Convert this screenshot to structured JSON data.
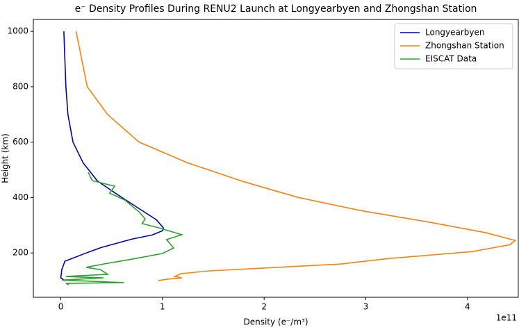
{
  "chart_data": {
    "type": "line",
    "title": "e⁻ Density Profiles During RENU2 Launch at Longyearbyen and Zhongshan Station",
    "x_label": "Density (e⁻/m³)",
    "y_label": "Height (km)",
    "x_offset_label": "1e11",
    "xlim": [
      -0.27,
      4.5
    ],
    "ylim": [
      40,
      1043
    ],
    "xticks": [
      0,
      1,
      2,
      3,
      4
    ],
    "yticks": [
      200,
      400,
      600,
      800,
      1000
    ],
    "grid": false,
    "legend": "upper right",
    "series": [
      {
        "name": "Longyearbyen",
        "color": "#0000b0",
        "x": [
          0.03,
          0.04,
          0.05,
          0.07,
          0.12,
          0.22,
          0.36,
          0.56,
          0.77,
          0.94,
          1.01,
          1.0,
          0.9,
          0.7,
          0.4,
          0.25,
          0.04,
          0.01,
          0.0,
          0.04
        ],
        "values": [
          1000,
          900,
          800,
          700,
          600,
          525,
          460,
          410,
          360,
          320,
          290,
          280,
          265,
          250,
          220,
          200,
          170,
          140,
          110,
          100
        ]
      },
      {
        "name": "Zhongshan Station",
        "color": "#ff7f0e",
        "x": [
          0.15,
          0.26,
          0.46,
          0.77,
          1.25,
          1.8,
          2.34,
          2.95,
          3.64,
          4.18,
          4.47,
          4.42,
          4.05,
          3.23,
          2.75,
          2.13,
          1.45,
          1.18,
          1.12,
          1.19,
          1.04,
          0.96
        ],
        "values": [
          1000,
          800,
          700,
          600,
          525,
          457,
          400,
          353,
          310,
          273,
          245,
          230,
          205,
          180,
          160,
          148,
          135,
          125,
          115,
          110,
          105,
          100
        ]
      },
      {
        "name": "EISCAT Data",
        "color": "#2ca02c",
        "x": [
          0.27,
          0.31,
          0.53,
          0.48,
          0.63,
          0.77,
          0.83,
          0.8,
          0.96,
          1.19,
          1.04,
          1.11,
          1.0,
          0.63,
          0.42,
          0.25,
          0.39,
          0.46,
          0.05,
          0.42,
          0.01,
          0.62,
          0.05,
          0.08
        ],
        "values": [
          491,
          461,
          441,
          416,
          391,
          348,
          323,
          306,
          291,
          266,
          248,
          218,
          198,
          173,
          160,
          148,
          140,
          123,
          115,
          110,
          102,
          93,
          90,
          85
        ]
      }
    ]
  }
}
